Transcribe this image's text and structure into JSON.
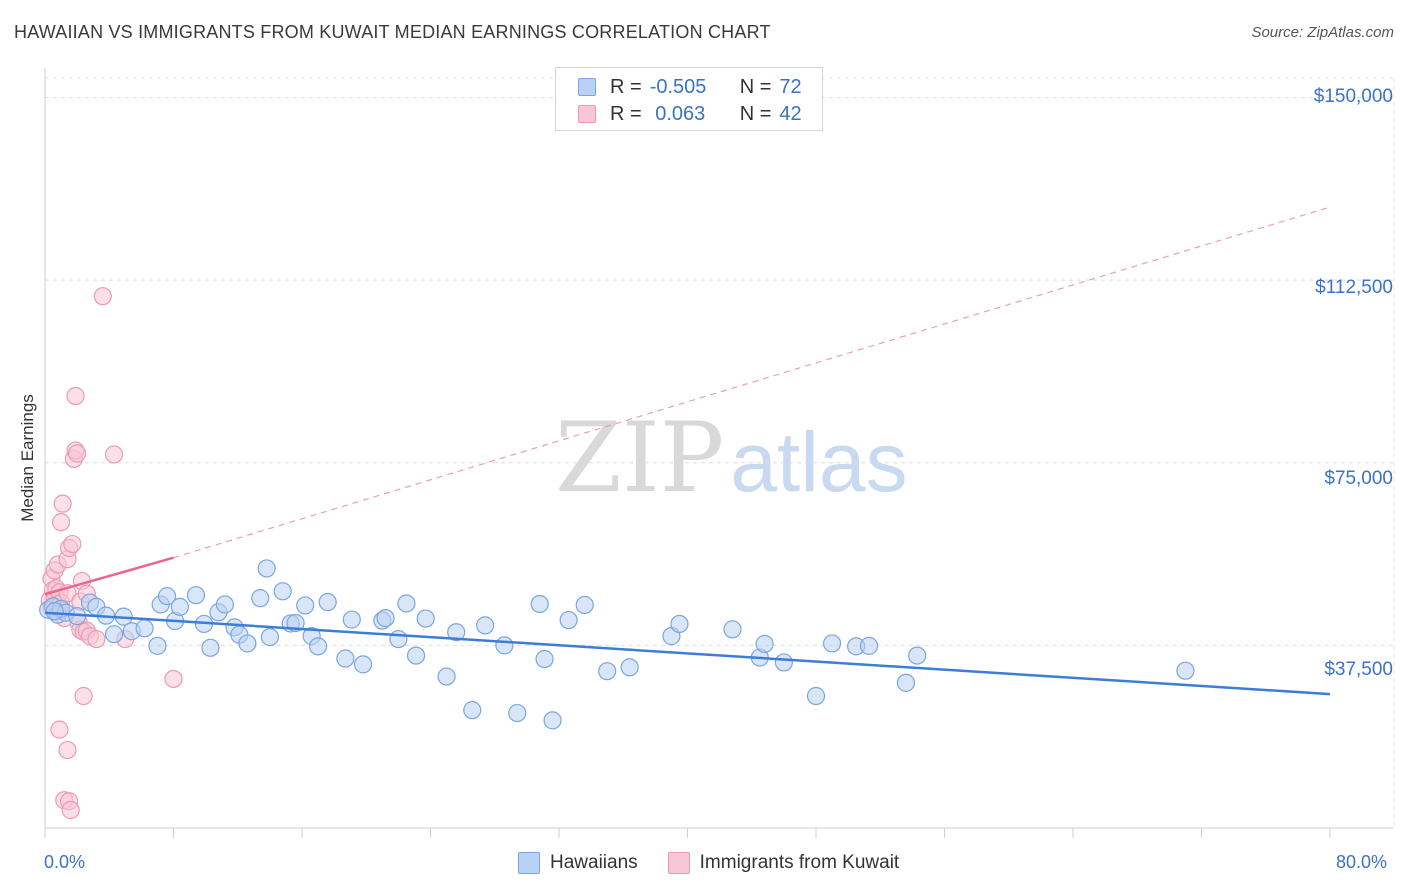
{
  "header": {
    "title": "HAWAIIAN VS IMMIGRANTS FROM KUWAIT MEDIAN EARNINGS CORRELATION CHART",
    "source": "Source: ZipAtlas.com"
  },
  "watermark": {
    "zip": "ZIP",
    "atlas": "atlas"
  },
  "legend": {
    "rows": [
      {
        "r_label": "R =",
        "r_value": "-0.505",
        "n_label": "N =",
        "n_value": "72"
      },
      {
        "r_label": "R =",
        "r_value": " 0.063",
        "n_label": "N =",
        "n_value": "42"
      }
    ]
  },
  "bottom_legend": {
    "blue": "Hawaiians",
    "pink": "Immigrants from Kuwait"
  },
  "colors": {
    "blue": "#3b7dd8",
    "blue_fill": "#b9d2f3",
    "pink": "#e8678f",
    "pink_fill": "#f8c7d6",
    "tick_text": "#3b73c4"
  },
  "chart_data": {
    "type": "scatter",
    "ylabel": "Median Earnings",
    "x_tick_labels": [
      "0.0%",
      "80.0%"
    ],
    "y_tick_labels": [
      "$150,000",
      "$112,500",
      "$75,000",
      "$37,500"
    ],
    "y_tick_values": [
      150000,
      112500,
      75000,
      37500
    ],
    "xlim": [
      0,
      80
    ],
    "ylim": [
      0,
      154000
    ],
    "grid": true,
    "series": [
      {
        "name": "Hawaiians",
        "trend": {
          "x": [
            0,
            80
          ],
          "y": [
            44200,
            27500
          ]
        },
        "points": [
          [
            0.2,
            44800
          ],
          [
            0.5,
            45500
          ],
          [
            0.8,
            43800
          ],
          [
            1.0,
            45000
          ],
          [
            1.3,
            44200
          ],
          [
            2.0,
            43500
          ],
          [
            2.8,
            46300
          ],
          [
            3.2,
            45400
          ],
          [
            3.8,
            43600
          ],
          [
            4.3,
            39800
          ],
          [
            4.9,
            43400
          ],
          [
            5.4,
            40400
          ],
          [
            6.2,
            41000
          ],
          [
            7.0,
            37400
          ],
          [
            7.2,
            45900
          ],
          [
            7.6,
            47600
          ],
          [
            8.1,
            42500
          ],
          [
            8.4,
            45400
          ],
          [
            9.4,
            47800
          ],
          [
            9.9,
            41900
          ],
          [
            10.3,
            37000
          ],
          [
            10.8,
            44300
          ],
          [
            11.2,
            45900
          ],
          [
            11.8,
            41200
          ],
          [
            12.1,
            39700
          ],
          [
            12.6,
            37900
          ],
          [
            13.4,
            47200
          ],
          [
            13.8,
            53300
          ],
          [
            14.0,
            39200
          ],
          [
            14.8,
            48600
          ],
          [
            15.3,
            42000
          ],
          [
            15.6,
            42100
          ],
          [
            16.2,
            45700
          ],
          [
            16.6,
            39400
          ],
          [
            17.0,
            37300
          ],
          [
            17.6,
            46400
          ],
          [
            18.7,
            34800
          ],
          [
            19.1,
            42800
          ],
          [
            19.8,
            33600
          ],
          [
            21.0,
            42600
          ],
          [
            21.2,
            43100
          ],
          [
            22.0,
            38800
          ],
          [
            22.5,
            46100
          ],
          [
            23.1,
            35400
          ],
          [
            23.7,
            43000
          ],
          [
            25.0,
            31100
          ],
          [
            25.6,
            40200
          ],
          [
            26.6,
            24200
          ],
          [
            27.4,
            41600
          ],
          [
            28.6,
            37500
          ],
          [
            29.4,
            23600
          ],
          [
            30.8,
            46000
          ],
          [
            31.1,
            34700
          ],
          [
            31.6,
            22100
          ],
          [
            32.6,
            42700
          ],
          [
            33.6,
            45800
          ],
          [
            35.0,
            32200
          ],
          [
            36.4,
            33000
          ],
          [
            39.0,
            39400
          ],
          [
            39.5,
            41900
          ],
          [
            42.8,
            40800
          ],
          [
            44.5,
            35000
          ],
          [
            44.8,
            37800
          ],
          [
            46.0,
            34000
          ],
          [
            48.0,
            27100
          ],
          [
            49.0,
            37900
          ],
          [
            50.5,
            37300
          ],
          [
            51.3,
            37400
          ],
          [
            53.6,
            29800
          ],
          [
            54.3,
            35400
          ],
          [
            71.0,
            32300
          ],
          [
            0.6,
            44500
          ]
        ]
      },
      {
        "name": "Immigrants from Kuwait",
        "trend_solid": {
          "x": [
            0,
            8
          ],
          "y": [
            48000,
            55500
          ]
        },
        "trend_dashed": {
          "x": [
            8,
            80
          ],
          "y": [
            55500,
            127500
          ]
        },
        "points": [
          [
            0.3,
            46800
          ],
          [
            0.4,
            45200
          ],
          [
            0.4,
            51200
          ],
          [
            0.5,
            48800
          ],
          [
            0.6,
            47000
          ],
          [
            0.6,
            52900
          ],
          [
            0.7,
            49200
          ],
          [
            0.8,
            46000
          ],
          [
            0.8,
            54100
          ],
          [
            0.9,
            48400
          ],
          [
            1.0,
            44800
          ],
          [
            1.0,
            46200
          ],
          [
            1.0,
            62800
          ],
          [
            1.1,
            66600
          ],
          [
            1.2,
            43100
          ],
          [
            1.4,
            48200
          ],
          [
            1.4,
            55200
          ],
          [
            1.5,
            57500
          ],
          [
            1.7,
            58300
          ],
          [
            1.8,
            75800
          ],
          [
            1.9,
            88700
          ],
          [
            1.9,
            77500
          ],
          [
            2.0,
            76900
          ],
          [
            2.1,
            42200
          ],
          [
            2.2,
            46500
          ],
          [
            2.2,
            40700
          ],
          [
            2.3,
            50700
          ],
          [
            2.4,
            27100
          ],
          [
            2.4,
            40300
          ],
          [
            2.6,
            48100
          ],
          [
            2.6,
            40500
          ],
          [
            2.8,
            39400
          ],
          [
            3.2,
            38800
          ],
          [
            3.6,
            109200
          ],
          [
            4.3,
            76700
          ],
          [
            5.0,
            38800
          ],
          [
            8.0,
            30600
          ],
          [
            0.9,
            20200
          ],
          [
            1.4,
            16000
          ],
          [
            1.2,
            5700
          ],
          [
            1.5,
            5500
          ],
          [
            1.6,
            3700
          ]
        ]
      }
    ]
  }
}
